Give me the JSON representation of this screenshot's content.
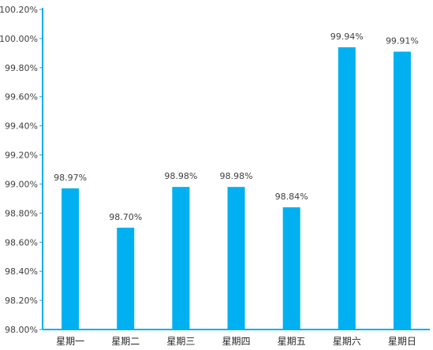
{
  "chart_data": {
    "type": "bar",
    "title": "",
    "xlabel": "",
    "ylabel": "",
    "categories": [
      "星期一",
      "星期二",
      "星期三",
      "星期四",
      "星期五",
      "星期六",
      "星期日"
    ],
    "values": [
      98.97,
      98.7,
      98.98,
      98.98,
      98.84,
      99.94,
      99.91
    ],
    "data_labels": [
      "98.97%",
      "98.70%",
      "98.98%",
      "98.98%",
      "98.84%",
      "99.94%",
      "99.91%"
    ],
    "ylim": [
      98.0,
      100.2
    ],
    "yticks": [
      98.0,
      98.2,
      98.4,
      98.6,
      98.8,
      99.0,
      99.2,
      99.4,
      99.6,
      99.8,
      100.0,
      100.2
    ],
    "ytick_labels": [
      "98.00%",
      "98.20%",
      "98.40%",
      "98.60%",
      "98.80%",
      "99.00%",
      "99.20%",
      "99.40%",
      "99.60%",
      "99.80%",
      "100.00%",
      "100.20%"
    ],
    "grid": false,
    "legend": "none",
    "colors": {
      "bar": "#00b0f0",
      "axis": "#00b0f0"
    }
  }
}
